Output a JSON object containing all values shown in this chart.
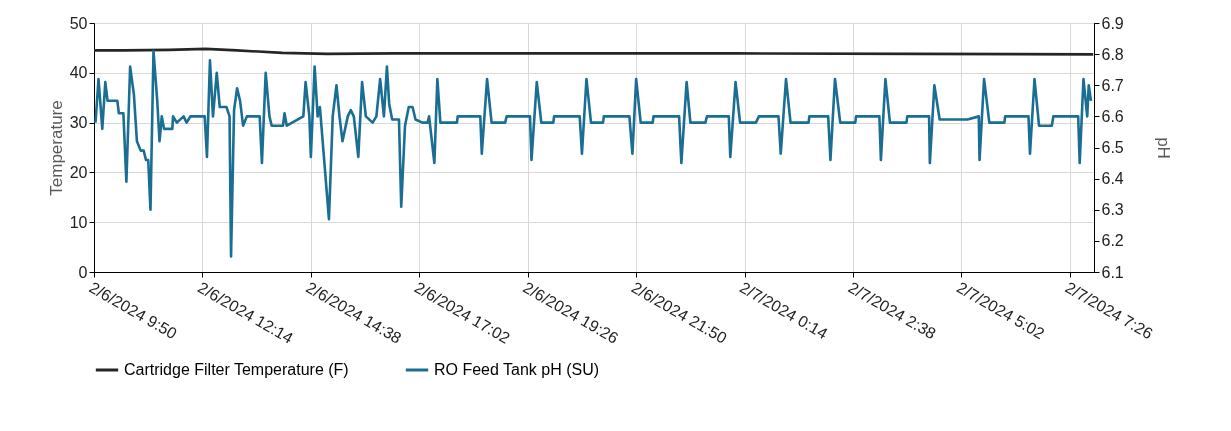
{
  "chart_data": {
    "type": "line",
    "ylabel": "Temperature",
    "y2label": "pH",
    "grid": true,
    "legend": "bottom",
    "xlim": [
      "2024-02-06T09:50",
      "2024-02-07T07:58"
    ],
    "xticks": [
      {
        "value": "2024-02-06T09:50",
        "label": "2/6/2024 9:50"
      },
      {
        "value": "2024-02-06T12:14",
        "label": "2/6/2024 12:14"
      },
      {
        "value": "2024-02-06T14:38",
        "label": "2/6/2024 14:38"
      },
      {
        "value": "2024-02-06T17:02",
        "label": "2/6/2024 17:02"
      },
      {
        "value": "2024-02-06T19:26",
        "label": "2/6/2024 19:26"
      },
      {
        "value": "2024-02-06T21:50",
        "label": "2/6/2024 21:50"
      },
      {
        "value": "2024-02-07T00:14",
        "label": "2/7/2024 0:14"
      },
      {
        "value": "2024-02-07T02:38",
        "label": "2/7/2024 2:38"
      },
      {
        "value": "2024-02-07T05:02",
        "label": "2/7/2024 5:02"
      },
      {
        "value": "2024-02-07T07:26",
        "label": "2/7/2024 7:26"
      }
    ],
    "ylim": [
      0,
      50
    ],
    "yticks": [
      0,
      10,
      20,
      30,
      40,
      50
    ],
    "y2lim": [
      6.1,
      6.9
    ],
    "y2ticks": [
      6.1,
      6.2,
      6.3,
      6.4,
      6.5,
      6.6,
      6.7,
      6.8,
      6.9
    ],
    "series": [
      {
        "name": "Cartridge Filter Temperature (F)",
        "color": "#262626",
        "x": [
          "2024-02-06T09:50",
          "2024-02-06T10:30",
          "2024-02-06T11:30",
          "2024-02-06T12:18",
          "2024-02-06T13:00",
          "2024-02-06T14:00",
          "2024-02-06T15:00",
          "2024-02-06T16:30",
          "2024-02-06T20:00",
          "2024-02-07T00:00",
          "2024-02-07T04:00",
          "2024-02-07T07:57"
        ],
        "values": [
          44.5,
          44.5,
          44.6,
          44.8,
          44.5,
          44.0,
          43.8,
          43.9,
          43.9,
          43.9,
          43.8,
          43.7
        ]
      },
      {
        "name": "RO Feed Tank pH (SU)",
        "color": "#1a6e93",
        "axis": "y2",
        "x": [
          "2024-02-06T09:52",
          "2024-02-06T09:56",
          "2024-02-06T10:01",
          "2024-02-06T10:05",
          "2024-02-06T10:08",
          "2024-02-06T10:21",
          "2024-02-06T10:23",
          "2024-02-06T10:29",
          "2024-02-06T10:33",
          "2024-02-06T10:38",
          "2024-02-06T10:43",
          "2024-02-06T10:47",
          "2024-02-06T10:52",
          "2024-02-06T10:56",
          "2024-02-06T10:59",
          "2024-02-06T11:02",
          "2024-02-06T11:05",
          "2024-02-06T11:09",
          "2024-02-06T11:14",
          "2024-02-06T11:17",
          "2024-02-06T11:20",
          "2024-02-06T11:23",
          "2024-02-06T11:34",
          "2024-02-06T11:35",
          "2024-02-06T11:40",
          "2024-02-06T11:49",
          "2024-02-06T11:53",
          "2024-02-06T11:58",
          "2024-02-06T12:17",
          "2024-02-06T12:20",
          "2024-02-06T12:24",
          "2024-02-06T12:28",
          "2024-02-06T12:33",
          "2024-02-06T12:37",
          "2024-02-06T12:46",
          "2024-02-06T12:50",
          "2024-02-06T12:52",
          "2024-02-06T12:56",
          "2024-02-06T13:00",
          "2024-02-06T13:04",
          "2024-02-06T13:08",
          "2024-02-06T13:13",
          "2024-02-06T13:30",
          "2024-02-06T13:33",
          "2024-02-06T13:38",
          "2024-02-06T13:43",
          "2024-02-06T13:46",
          "2024-02-06T14:01",
          "2024-02-06T14:03",
          "2024-02-06T14:06",
          "2024-02-06T14:28",
          "2024-02-06T14:31",
          "2024-02-06T14:36",
          "2024-02-06T14:38",
          "2024-02-06T14:43",
          "2024-02-06T14:47",
          "2024-02-06T14:50",
          "2024-02-06T15:02",
          "2024-02-06T15:07",
          "2024-02-06T15:12",
          "2024-02-06T15:16",
          "2024-02-06T15:20",
          "2024-02-06T15:27",
          "2024-02-06T15:31",
          "2024-02-06T15:35",
          "2024-02-06T15:41",
          "2024-02-06T15:46",
          "2024-02-06T15:51",
          "2024-02-06T16:00",
          "2024-02-06T16:05",
          "2024-02-06T16:10",
          "2024-02-06T16:15",
          "2024-02-06T16:19",
          "2024-02-06T16:22",
          "2024-02-06T16:26",
          "2024-02-06T16:35",
          "2024-02-06T16:38",
          "2024-02-06T16:43",
          "2024-02-06T16:48",
          "2024-02-06T16:53",
          "2024-02-06T16:57",
          "2024-02-06T17:06",
          "2024-02-06T17:13",
          "2024-02-06T17:15",
          "2024-02-06T17:22",
          "2024-02-06T17:26",
          "2024-02-06T17:30",
          "2024-02-06T17:52",
          "2024-02-06T17:53",
          "2024-02-06T18:23",
          "2024-02-06T18:25",
          "2024-02-06T18:32",
          "2024-02-06T18:38",
          "2024-02-06T18:56",
          "2024-02-06T18:58",
          "2024-02-06T19:29",
          "2024-02-06T19:31",
          "2024-02-06T19:38",
          "2024-02-06T19:44",
          "2024-02-06T20:00",
          "2024-02-06T20:01",
          "2024-02-06T20:35",
          "2024-02-06T20:38",
          "2024-02-06T20:44",
          "2024-02-06T20:50",
          "2024-02-06T21:06",
          "2024-02-06T21:07",
          "2024-02-06T21:41",
          "2024-02-06T21:45",
          "2024-02-06T21:50",
          "2024-02-06T21:56",
          "2024-02-06T22:12",
          "2024-02-06T22:13",
          "2024-02-06T22:47",
          "2024-02-06T22:50",
          "2024-02-06T22:57",
          "2024-02-06T23:02",
          "2024-02-06T23:22",
          "2024-02-06T23:24",
          "2024-02-06T23:53",
          "2024-02-06T23:55",
          "2024-02-07T00:02",
          "2024-02-07T00:08",
          "2024-02-07T00:29",
          "2024-02-07T00:33",
          "2024-02-07T00:59",
          "2024-02-07T01:02",
          "2024-02-07T01:09",
          "2024-02-07T01:15",
          "2024-02-07T01:39",
          "2024-02-07T01:40",
          "2024-02-07T02:05",
          "2024-02-07T02:08",
          "2024-02-07T02:14",
          "2024-02-07T02:21",
          "2024-02-07T02:41",
          "2024-02-07T02:42",
          "2024-02-07T03:13",
          "2024-02-07T03:15",
          "2024-02-07T03:21",
          "2024-02-07T03:27",
          "2024-02-07T03:49",
          "2024-02-07T03:50",
          "2024-02-07T04:19",
          "2024-02-07T04:20",
          "2024-02-07T04:26",
          "2024-02-07T04:33",
          "2024-02-07T05:10",
          "2024-02-07T05:25",
          "2024-02-07T05:26",
          "2024-02-07T05:32",
          "2024-02-07T05:39",
          "2024-02-07T05:59",
          "2024-02-07T06:00",
          "2024-02-07T06:31",
          "2024-02-07T06:33",
          "2024-02-07T06:39",
          "2024-02-07T06:45",
          "2024-02-07T07:02",
          "2024-02-07T07:04",
          "2024-02-07T07:37",
          "2024-02-07T07:39",
          "2024-02-07T07:44",
          "2024-02-07T07:49",
          "2024-02-07T07:51",
          "2024-02-07T07:54"
        ],
        "values": [
          6.58,
          6.72,
          6.56,
          6.71,
          6.65,
          6.65,
          6.61,
          6.61,
          6.39,
          6.76,
          6.67,
          6.52,
          6.49,
          6.49,
          6.46,
          6.46,
          6.3,
          6.81,
          6.65,
          6.52,
          6.6,
          6.56,
          6.56,
          6.6,
          6.58,
          6.6,
          6.58,
          6.6,
          6.6,
          6.47,
          6.78,
          6.6,
          6.74,
          6.63,
          6.63,
          6.6,
          6.15,
          6.62,
          6.69,
          6.65,
          6.57,
          6.6,
          6.6,
          6.45,
          6.74,
          6.6,
          6.57,
          6.57,
          6.61,
          6.57,
          6.6,
          6.71,
          6.6,
          6.47,
          6.76,
          6.6,
          6.63,
          6.27,
          6.6,
          6.7,
          6.6,
          6.52,
          6.6,
          6.62,
          6.6,
          6.47,
          6.71,
          6.6,
          6.58,
          6.6,
          6.72,
          6.6,
          6.76,
          6.64,
          6.59,
          6.59,
          6.31,
          6.57,
          6.63,
          6.63,
          6.59,
          6.58,
          6.58,
          6.6,
          6.45,
          6.72,
          6.58,
          6.58,
          6.6,
          6.6,
          6.48,
          6.72,
          6.58,
          6.58,
          6.6,
          6.6,
          6.46,
          6.71,
          6.58,
          6.58,
          6.6,
          6.6,
          6.48,
          6.72,
          6.58,
          6.58,
          6.6,
          6.6,
          6.48,
          6.72,
          6.58,
          6.58,
          6.6,
          6.6,
          6.45,
          6.71,
          6.58,
          6.58,
          6.6,
          6.6,
          6.47,
          6.71,
          6.58,
          6.58,
          6.6,
          6.6,
          6.48,
          6.72,
          6.58,
          6.58,
          6.6,
          6.6,
          6.46,
          6.72,
          6.58,
          6.58,
          6.6,
          6.6,
          6.46,
          6.72,
          6.58,
          6.58,
          6.6,
          6.6,
          6.45,
          6.7,
          6.59,
          6.59,
          6.6,
          6.46,
          6.72,
          6.58,
          6.58,
          6.6,
          6.6,
          6.48,
          6.72,
          6.57,
          6.57,
          6.6,
          6.6,
          6.45,
          6.72,
          6.6,
          6.7,
          6.65
        ]
      }
    ]
  }
}
